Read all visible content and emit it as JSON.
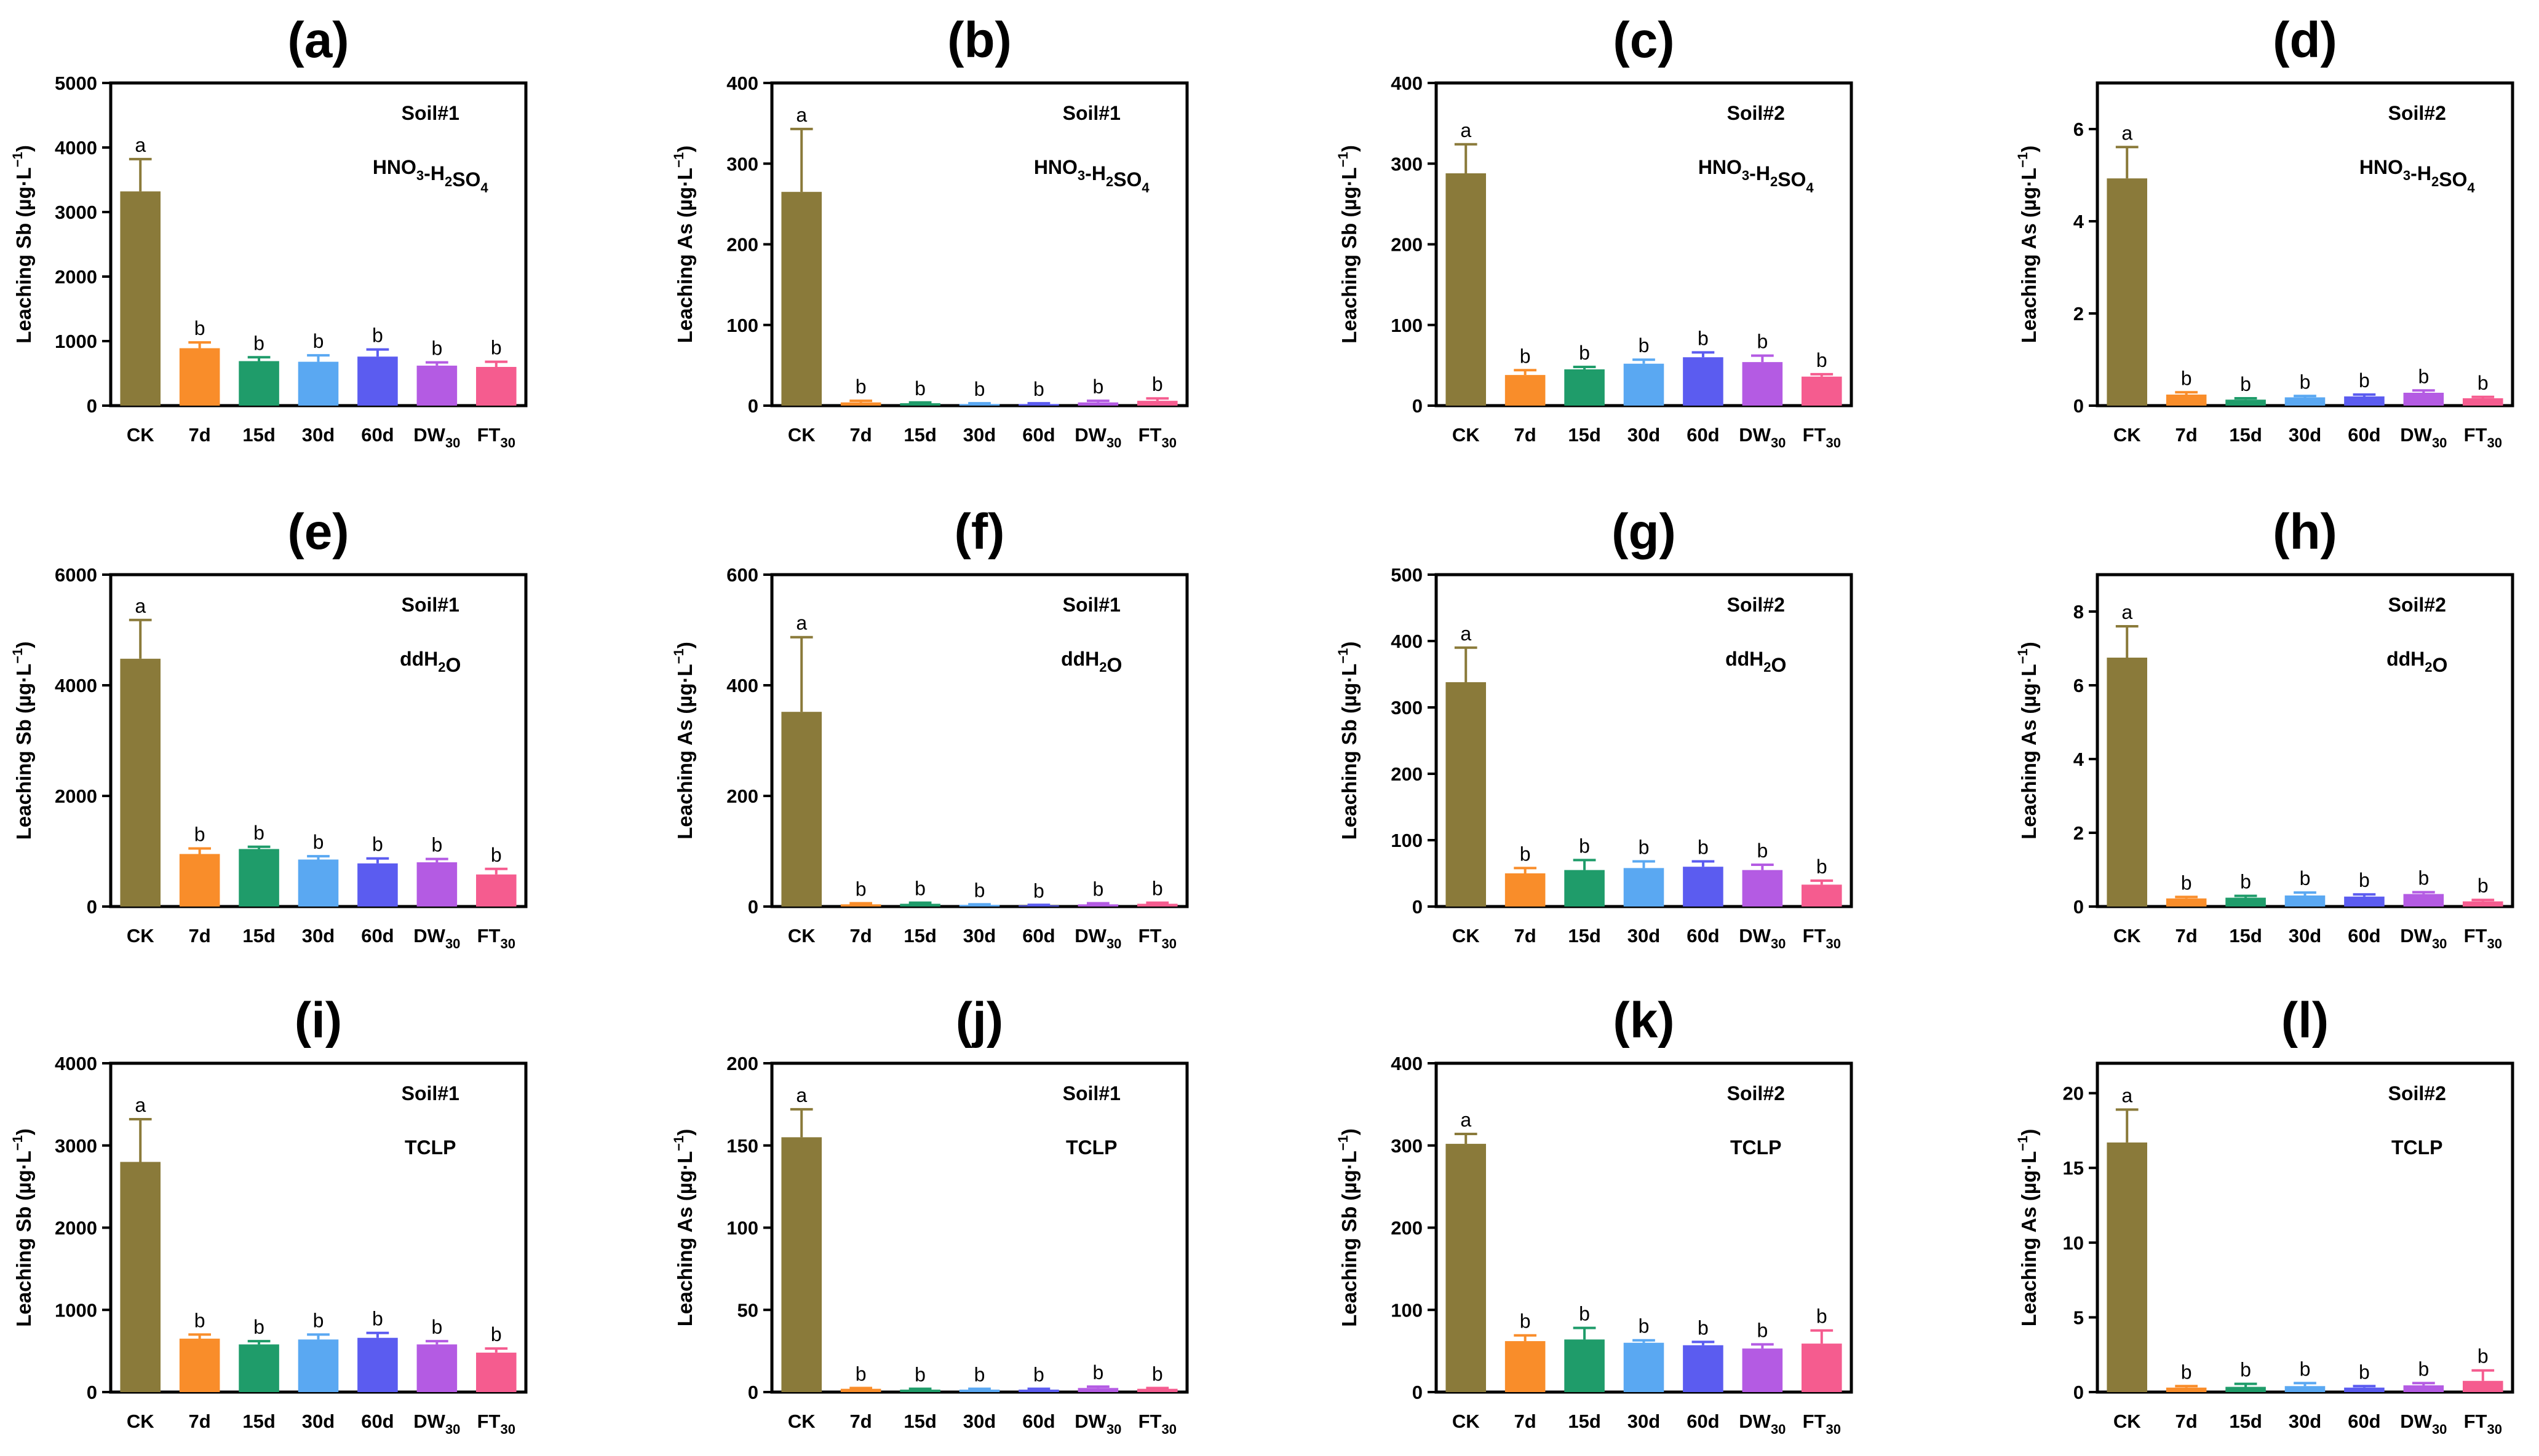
{
  "colors": {
    "CK": "#8a7a3a",
    "7d": "#f98d2a",
    "15d": "#1f9c6a",
    "30d": "#5aa8f2",
    "60d": "#5b5cf0",
    "DW30": "#b45be3",
    "FT30": "#f55c8f",
    "axis": "#000000"
  },
  "chart_data": [
    {
      "type": "bar",
      "panel": "(a)",
      "ylabel_prefix": "Leaching Sb (µg·L",
      "ylabel_sup": "−1",
      "ylabel_suffix": ")",
      "soil": "Soil#1",
      "method": [
        "HNO",
        "3",
        "-H",
        "2",
        "SO",
        "4"
      ],
      "categories": [
        [
          "CK",
          ""
        ],
        [
          "7d",
          ""
        ],
        [
          "15d",
          ""
        ],
        [
          "30d",
          ""
        ],
        [
          "60d",
          ""
        ],
        [
          "DW",
          "30"
        ],
        [
          "FT",
          "30"
        ]
      ],
      "values": [
        3320,
        890,
        690,
        680,
        760,
        620,
        600
      ],
      "errors": [
        500,
        90,
        60,
        100,
        110,
        50,
        80
      ],
      "letters": [
        "a",
        "b",
        "b",
        "b",
        "b",
        "b",
        "b"
      ],
      "ylim": [
        0,
        5000
      ],
      "yticks": [
        "0",
        "1000",
        "2000",
        "3000",
        "4000",
        "5000"
      ]
    },
    {
      "type": "bar",
      "panel": "(b)",
      "ylabel_prefix": "Leaching As (µg·L",
      "ylabel_sup": "−1",
      "ylabel_suffix": ")",
      "soil": "Soil#1",
      "method": [
        "HNO",
        "3",
        "-H",
        "2",
        "SO",
        "4"
      ],
      "categories": [
        [
          "CK",
          ""
        ],
        [
          "7d",
          ""
        ],
        [
          "15d",
          ""
        ],
        [
          "30d",
          ""
        ],
        [
          "60d",
          ""
        ],
        [
          "DW",
          "30"
        ],
        [
          "FT",
          "30"
        ]
      ],
      "values": [
        265,
        4,
        3,
        2,
        2,
        4,
        6
      ],
      "errors": [
        78,
        2,
        1,
        1,
        1,
        2,
        3
      ],
      "letters": [
        "a",
        "b",
        "b",
        "b",
        "b",
        "b",
        "b"
      ],
      "ylim": [
        0,
        400
      ],
      "yticks": [
        "0",
        "100",
        "200",
        "300",
        "400"
      ]
    },
    {
      "type": "bar",
      "panel": "(c)",
      "ylabel_prefix": "Leaching Sb (µg·L",
      "ylabel_sup": "−1",
      "ylabel_suffix": ")",
      "soil": "Soil#2",
      "method": [
        "HNO",
        "3",
        "-H",
        "2",
        "SO",
        "4"
      ],
      "categories": [
        [
          "CK",
          ""
        ],
        [
          "7d",
          ""
        ],
        [
          "15d",
          ""
        ],
        [
          "30d",
          ""
        ],
        [
          "60d",
          ""
        ],
        [
          "DW",
          "30"
        ],
        [
          "FT",
          "30"
        ]
      ],
      "values": [
        288,
        38,
        45,
        52,
        60,
        54,
        36
      ],
      "errors": [
        36,
        6,
        3,
        5,
        6,
        8,
        3
      ],
      "letters": [
        "a",
        "b",
        "b",
        "b",
        "b",
        "b",
        "b"
      ],
      "ylim": [
        0,
        400
      ],
      "yticks": [
        "0",
        "100",
        "200",
        "300",
        "400"
      ]
    },
    {
      "type": "bar",
      "panel": "(d)",
      "ylabel_prefix": "Leaching As (µg·L",
      "ylabel_sup": "−1",
      "ylabel_suffix": ")",
      "soil": "Soil#2",
      "method": [
        "HNO",
        "3",
        "-H",
        "2",
        "SO",
        "4"
      ],
      "categories": [
        [
          "CK",
          ""
        ],
        [
          "7d",
          ""
        ],
        [
          "15d",
          ""
        ],
        [
          "30d",
          ""
        ],
        [
          "60d",
          ""
        ],
        [
          "DW",
          "30"
        ],
        [
          "FT",
          "30"
        ]
      ],
      "values": [
        4.93,
        0.24,
        0.13,
        0.18,
        0.2,
        0.28,
        0.16
      ],
      "errors": [
        0.68,
        0.05,
        0.03,
        0.03,
        0.04,
        0.05,
        0.03
      ],
      "letters": [
        "a",
        "b",
        "b",
        "b",
        "b",
        "b",
        "b"
      ],
      "ylim": [
        0,
        7
      ],
      "yticks": [
        "0",
        "2",
        "4",
        "6"
      ],
      "ytick_values": [
        0,
        2,
        4,
        6
      ]
    },
    {
      "type": "bar",
      "panel": "(e)",
      "ylabel_prefix": "Leaching Sb (µg·L",
      "ylabel_sup": "−1",
      "ylabel_suffix": ")",
      "soil": "Soil#1",
      "method": [
        "ddH",
        "",
        "",
        "2",
        "O",
        ""
      ],
      "categories": [
        [
          "CK",
          ""
        ],
        [
          "7d",
          ""
        ],
        [
          "15d",
          ""
        ],
        [
          "30d",
          ""
        ],
        [
          "60d",
          ""
        ],
        [
          "DW",
          "30"
        ],
        [
          "FT",
          "30"
        ]
      ],
      "values": [
        4480,
        950,
        1040,
        850,
        780,
        800,
        580
      ],
      "errors": [
        700,
        100,
        40,
        60,
        90,
        60,
        100
      ],
      "letters": [
        "a",
        "b",
        "b",
        "b",
        "b",
        "b",
        "b"
      ],
      "ylim": [
        0,
        6000
      ],
      "yticks": [
        "0",
        "2000",
        "4000",
        "6000"
      ],
      "ytick_values": [
        0,
        2000,
        4000,
        6000
      ]
    },
    {
      "type": "bar",
      "panel": "(f)",
      "ylabel_prefix": "Leaching As (µg·L",
      "ylabel_sup": "−1",
      "ylabel_suffix": ")",
      "soil": "Soil#1",
      "method": [
        "ddH",
        "",
        "",
        "2",
        "O",
        ""
      ],
      "categories": [
        [
          "CK",
          ""
        ],
        [
          "7d",
          ""
        ],
        [
          "15d",
          ""
        ],
        [
          "30d",
          ""
        ],
        [
          "60d",
          ""
        ],
        [
          "DW",
          "30"
        ],
        [
          "FT",
          "30"
        ]
      ],
      "values": [
        352,
        4,
        5,
        3,
        2,
        4,
        5
      ],
      "errors": [
        135,
        2,
        2,
        1,
        1,
        2,
        2
      ],
      "letters": [
        "a",
        "b",
        "b",
        "b",
        "b",
        "b",
        "b"
      ],
      "ylim": [
        0,
        600
      ],
      "yticks": [
        "0",
        "200",
        "400",
        "600"
      ],
      "ytick_values": [
        0,
        200,
        400,
        600
      ]
    },
    {
      "type": "bar",
      "panel": "(g)",
      "ylabel_prefix": "Leaching Sb (µg·L",
      "ylabel_sup": "−1",
      "ylabel_suffix": ")",
      "soil": "Soil#2",
      "method": [
        "ddH",
        "",
        "",
        "2",
        "O",
        ""
      ],
      "categories": [
        [
          "CK",
          ""
        ],
        [
          "7d",
          ""
        ],
        [
          "15d",
          ""
        ],
        [
          "30d",
          ""
        ],
        [
          "60d",
          ""
        ],
        [
          "DW",
          "30"
        ],
        [
          "FT",
          "30"
        ]
      ],
      "values": [
        338,
        50,
        55,
        58,
        60,
        55,
        33
      ],
      "errors": [
        52,
        8,
        15,
        10,
        8,
        8,
        6
      ],
      "letters": [
        "a",
        "b",
        "b",
        "b",
        "b",
        "b",
        "b"
      ],
      "ylim": [
        0,
        500
      ],
      "yticks": [
        "0",
        "100",
        "200",
        "300",
        "400",
        "500"
      ]
    },
    {
      "type": "bar",
      "panel": "(h)",
      "ylabel_prefix": "Leaching As (µg·L",
      "ylabel_sup": "−1",
      "ylabel_suffix": ")",
      "soil": "Soil#2",
      "method": [
        "ddH",
        "",
        "",
        "2",
        "O",
        ""
      ],
      "categories": [
        [
          "CK",
          ""
        ],
        [
          "7d",
          ""
        ],
        [
          "15d",
          ""
        ],
        [
          "30d",
          ""
        ],
        [
          "60d",
          ""
        ],
        [
          "DW",
          "30"
        ],
        [
          "FT",
          "30"
        ]
      ],
      "values": [
        6.75,
        0.22,
        0.24,
        0.3,
        0.27,
        0.34,
        0.14
      ],
      "errors": [
        0.85,
        0.04,
        0.05,
        0.08,
        0.06,
        0.05,
        0.04
      ],
      "letters": [
        "a",
        "b",
        "b",
        "b",
        "b",
        "b",
        "b"
      ],
      "ylim": [
        0,
        9
      ],
      "yticks": [
        "0",
        "2",
        "4",
        "6",
        "8"
      ],
      "ytick_values": [
        0,
        2,
        4,
        6,
        8
      ]
    },
    {
      "type": "bar",
      "panel": "(i)",
      "ylabel_prefix": "Leaching Sb (µg·L",
      "ylabel_sup": "−1",
      "ylabel_suffix": ")",
      "soil": "Soil#1",
      "method": [
        "TCLP",
        "",
        "",
        "",
        "",
        ""
      ],
      "categories": [
        [
          "CK",
          ""
        ],
        [
          "7d",
          ""
        ],
        [
          "15d",
          ""
        ],
        [
          "30d",
          ""
        ],
        [
          "60d",
          ""
        ],
        [
          "DW",
          "30"
        ],
        [
          "FT",
          "30"
        ]
      ],
      "values": [
        2800,
        650,
        580,
        640,
        660,
        580,
        480
      ],
      "errors": [
        520,
        50,
        40,
        60,
        60,
        40,
        50
      ],
      "letters": [
        "a",
        "b",
        "b",
        "b",
        "b",
        "b",
        "b"
      ],
      "ylim": [
        0,
        4000
      ],
      "yticks": [
        "0",
        "1000",
        "2000",
        "3000",
        "4000"
      ]
    },
    {
      "type": "bar",
      "panel": "(j)",
      "ylabel_prefix": "Leaching As (µg·L",
      "ylabel_sup": "−1",
      "ylabel_suffix": ")",
      "soil": "Soil#1",
      "method": [
        "TCLP",
        "",
        "",
        "",
        "",
        ""
      ],
      "categories": [
        [
          "CK",
          ""
        ],
        [
          "7d",
          ""
        ],
        [
          "15d",
          ""
        ],
        [
          "30d",
          ""
        ],
        [
          "60d",
          ""
        ],
        [
          "DW",
          "30"
        ],
        [
          "FT",
          "30"
        ]
      ],
      "values": [
        155,
        2,
        1.5,
        1.5,
        1.5,
        2.5,
        2
      ],
      "errors": [
        17,
        0.5,
        0.5,
        0.5,
        0.5,
        0.8,
        0.5
      ],
      "letters": [
        "a",
        "b",
        "b",
        "b",
        "b",
        "b",
        "b"
      ],
      "ylim": [
        0,
        200
      ],
      "yticks": [
        "0",
        "50",
        "100",
        "150",
        "200"
      ]
    },
    {
      "type": "bar",
      "panel": "(k)",
      "ylabel_prefix": "Leaching Sb (µg·L",
      "ylabel_sup": "−1",
      "ylabel_suffix": ")",
      "soil": "Soil#2",
      "method": [
        "TCLP",
        "",
        "",
        "",
        "",
        ""
      ],
      "categories": [
        [
          "CK",
          ""
        ],
        [
          "7d",
          ""
        ],
        [
          "15d",
          ""
        ],
        [
          "30d",
          ""
        ],
        [
          "60d",
          ""
        ],
        [
          "DW",
          "30"
        ],
        [
          "FT",
          "30"
        ]
      ],
      "values": [
        302,
        62,
        64,
        60,
        57,
        53,
        59
      ],
      "errors": [
        12,
        7,
        14,
        3,
        4,
        5,
        16
      ],
      "letters": [
        "a",
        "b",
        "b",
        "b",
        "b",
        "b",
        "b"
      ],
      "ylim": [
        0,
        400
      ],
      "yticks": [
        "0",
        "100",
        "200",
        "300",
        "400"
      ]
    },
    {
      "type": "bar",
      "panel": "(l)",
      "ylabel_prefix": "Leaching As (µg·L",
      "ylabel_sup": "−1",
      "ylabel_suffix": ")",
      "soil": "Soil#2",
      "method": [
        "TCLP",
        "",
        "",
        "",
        "",
        ""
      ],
      "categories": [
        [
          "CK",
          ""
        ],
        [
          "7d",
          ""
        ],
        [
          "15d",
          ""
        ],
        [
          "30d",
          ""
        ],
        [
          "60d",
          ""
        ],
        [
          "DW",
          "30"
        ],
        [
          "FT",
          "30"
        ]
      ],
      "values": [
        16.7,
        0.3,
        0.35,
        0.4,
        0.3,
        0.45,
        0.75
      ],
      "errors": [
        2.2,
        0.1,
        0.2,
        0.2,
        0.1,
        0.15,
        0.7
      ],
      "letters": [
        "a",
        "b",
        "b",
        "b",
        "b",
        "b",
        "b"
      ],
      "ylim": [
        0,
        22
      ],
      "yticks": [
        "0",
        "5",
        "10",
        "15",
        "20"
      ],
      "ytick_values": [
        0,
        5,
        10,
        15,
        20
      ]
    }
  ]
}
